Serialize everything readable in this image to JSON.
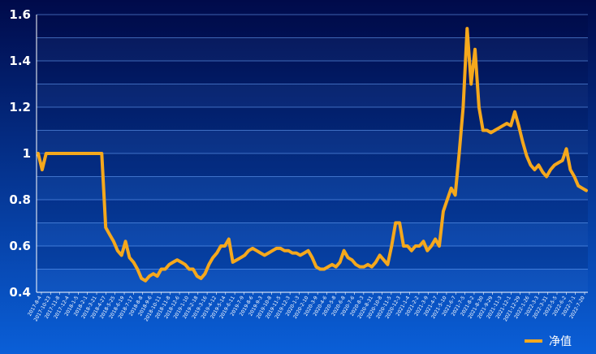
{
  "chart_data": {
    "type": "line",
    "title": "",
    "xlabel": "",
    "ylabel": "",
    "ylim": [
      0.4,
      1.6
    ],
    "yticks": [
      "1.6",
      "1.4",
      "1.2",
      "1",
      "0.8",
      "0.6",
      "0.4"
    ],
    "grid": true,
    "legend": "bottom-right",
    "colors": {
      "line": "#f5a81c",
      "background_top": "#000a4a",
      "background_bottom": "#0a5fd8",
      "grid": "#6fa8ff",
      "axis": "#ffffff"
    },
    "x_tick_labels": [
      "2017-8-4",
      "2017-10-23",
      "2017-11-8",
      "2017-12-4",
      "2018-1-5",
      "2018-2-1",
      "2018-3-21",
      "2018-4-27",
      "2018-5-25",
      "2018-6-19",
      "2018-7-17",
      "2018-8-8",
      "2018-9-6",
      "2018-10-11",
      "2018-11-8",
      "2018-12-6",
      "2019-1-10",
      "2019-2-18",
      "2019-3-16",
      "2019-4-12",
      "2019-5-14",
      "2019-6-11",
      "2019-7-9",
      "2019-8-6",
      "2019-9-3",
      "2019-10-8",
      "2019-11-5",
      "2019-12-3",
      "2020-1-3",
      "2020-2-10",
      "2020-3-9",
      "2020-4-6",
      "2020-5-8",
      "2020-6-8",
      "2020-7-6",
      "2020-8-3",
      "2020-8-31",
      "2020-10-8",
      "2020-11-5",
      "2020-12-3",
      "2021-1-4",
      "2021-2-2",
      "2021-3-9",
      "2021-4-7",
      "2021-5-10",
      "2021-6-7",
      "2021-7-5",
      "2021-8-2",
      "2021-8-30",
      "2021-9-29",
      "2021-11-3",
      "2021-12-1",
      "2021-12-29",
      "2022-1-26",
      "2022-3-3",
      "2022-3-31",
      "2022-5-5",
      "2022-6-2",
      "2022-7-1",
      "2022-7-20"
    ],
    "series": [
      {
        "name": "净值",
        "values": [
          1.0,
          0.93,
          1.0,
          1.0,
          1.0,
          1.0,
          1.0,
          1.0,
          1.0,
          1.0,
          1.0,
          1.0,
          1.0,
          1.0,
          1.0,
          1.0,
          1.0,
          0.68,
          0.65,
          0.62,
          0.58,
          0.56,
          0.62,
          0.55,
          0.53,
          0.5,
          0.46,
          0.45,
          0.47,
          0.48,
          0.47,
          0.5,
          0.5,
          0.52,
          0.53,
          0.54,
          0.53,
          0.52,
          0.5,
          0.5,
          0.47,
          0.46,
          0.48,
          0.52,
          0.55,
          0.57,
          0.6,
          0.6,
          0.63,
          0.53,
          0.54,
          0.55,
          0.56,
          0.58,
          0.59,
          0.58,
          0.57,
          0.56,
          0.57,
          0.58,
          0.59,
          0.59,
          0.58,
          0.58,
          0.57,
          0.57,
          0.56,
          0.57,
          0.58,
          0.55,
          0.51,
          0.5,
          0.5,
          0.51,
          0.52,
          0.51,
          0.53,
          0.58,
          0.55,
          0.54,
          0.52,
          0.51,
          0.51,
          0.52,
          0.51,
          0.53,
          0.56,
          0.54,
          0.52,
          0.6,
          0.7,
          0.7,
          0.6,
          0.6,
          0.58,
          0.6,
          0.6,
          0.62,
          0.58,
          0.6,
          0.63,
          0.6,
          0.75,
          0.8,
          0.85,
          0.82,
          1.0,
          1.2,
          1.54,
          1.3,
          1.45,
          1.2,
          1.1,
          1.1,
          1.09,
          1.1,
          1.11,
          1.12,
          1.13,
          1.12,
          1.18,
          1.12,
          1.05,
          0.99,
          0.95,
          0.93,
          0.95,
          0.92,
          0.9,
          0.93,
          0.95,
          0.96,
          0.97,
          1.02,
          0.93,
          0.9,
          0.86,
          0.85,
          0.84
        ]
      }
    ]
  }
}
